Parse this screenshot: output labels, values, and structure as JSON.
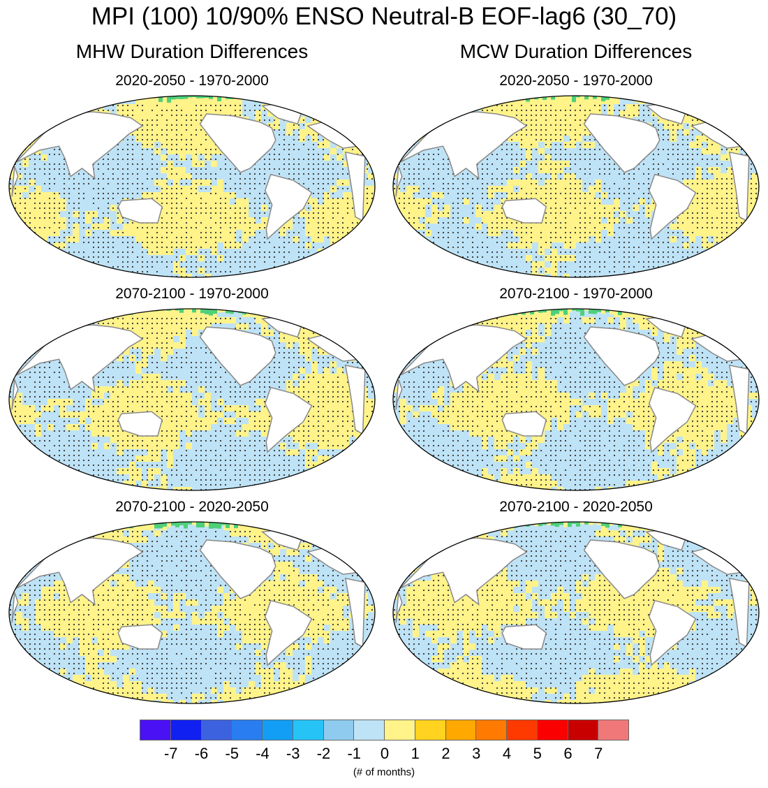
{
  "title": "MPI (100) 10/90% ENSO Neutral-B EOF-lag6 (30_70)",
  "columns": [
    {
      "title": "MHW Duration Differences",
      "panels": [
        {
          "title": "2020-2050 - 1970-2000"
        },
        {
          "title": "2070-2100 - 1970-2000"
        },
        {
          "title": "2070-2100 - 2020-2050"
        }
      ]
    },
    {
      "title": "MCW Duration Differences",
      "panels": [
        {
          "title": "2020-2050 - 1970-2000"
        },
        {
          "title": "2070-2100 - 1970-2000"
        },
        {
          "title": "2070-2100 - 2020-2050"
        }
      ]
    }
  ],
  "colorbar": {
    "labels": [
      "-7",
      "-6",
      "-5",
      "-4",
      "-3",
      "-2",
      "-1",
      "0",
      "1",
      "2",
      "3",
      "4",
      "5",
      "6",
      "7"
    ],
    "colors": [
      "#4b11f5",
      "#1020f0",
      "#3d62e0",
      "#2a7df0",
      "#139ef5",
      "#26c3f7",
      "#8fcbef",
      "#bfe3f6",
      "#fff38a",
      "#ffd31f",
      "#ffa800",
      "#ff7a00",
      "#ff3a00",
      "#fa0000",
      "#c80000",
      "#f07878"
    ],
    "units": "(# of months)"
  },
  "map_colors": {
    "ocean_positive": "#fff38a",
    "ocean_negative": "#bfe3f6",
    "arctic_positive": "#4ed07a",
    "land": "#ffffff",
    "coastline": "#888888",
    "stipple": "#333333"
  }
}
